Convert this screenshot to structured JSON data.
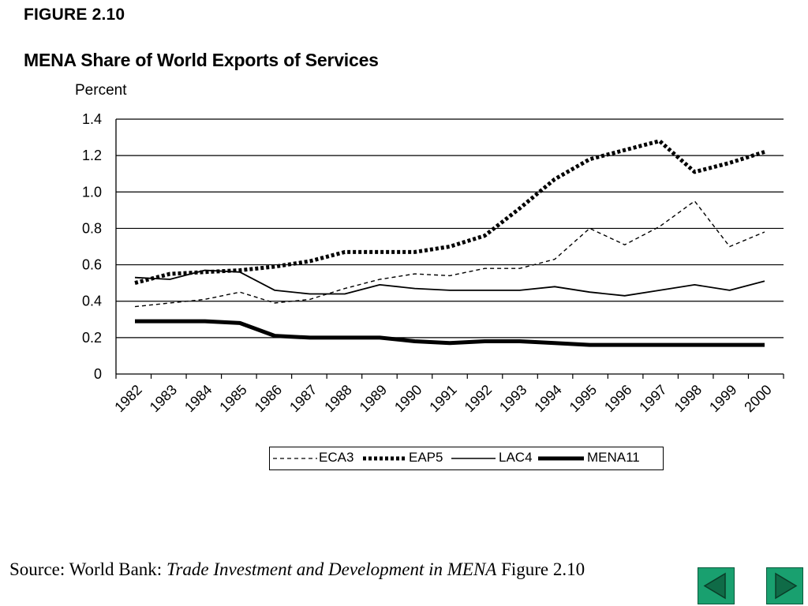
{
  "figure_label": "FIGURE 2.10",
  "chart_data": {
    "type": "line",
    "title": "MENA Share of World Exports of Services",
    "ylabel": "Percent",
    "xlabel": "",
    "ylim": [
      0,
      1.4
    ],
    "yticks": [
      "0",
      "0.2",
      "0.4",
      "0.6",
      "0.8",
      "1.0",
      "1.2",
      "1.4"
    ],
    "ytick_values": [
      0,
      0.2,
      0.4,
      0.6,
      0.8,
      1.0,
      1.2,
      1.4
    ],
    "categories": [
      "1982",
      "1983",
      "1984",
      "1985",
      "1986",
      "1987",
      "1988",
      "1989",
      "1990",
      "1991",
      "1992",
      "1993",
      "1994",
      "1995",
      "1996",
      "1997",
      "1998",
      "1999",
      "2000"
    ],
    "grid": "horizontal",
    "legend_position": "bottom",
    "series": [
      {
        "name": "ECA3",
        "style": "dashed",
        "values": [
          0.37,
          0.39,
          0.41,
          0.45,
          0.39,
          0.41,
          0.47,
          0.52,
          0.55,
          0.54,
          0.58,
          0.58,
          0.63,
          0.8,
          0.71,
          0.81,
          0.95,
          0.7,
          0.78
        ]
      },
      {
        "name": "EAP5",
        "style": "dotted",
        "values": [
          0.5,
          0.55,
          0.56,
          0.57,
          0.59,
          0.62,
          0.67,
          0.67,
          0.67,
          0.7,
          0.76,
          0.91,
          1.07,
          1.18,
          1.23,
          1.28,
          1.11,
          1.16,
          1.22
        ]
      },
      {
        "name": "LAC4",
        "style": "solid",
        "values": [
          0.53,
          0.52,
          0.57,
          0.56,
          0.46,
          0.44,
          0.44,
          0.49,
          0.47,
          0.46,
          0.46,
          0.46,
          0.48,
          0.45,
          0.43,
          0.46,
          0.49,
          0.46,
          0.51
        ]
      },
      {
        "name": "MENA11",
        "style": "thick",
        "values": [
          0.29,
          0.29,
          0.29,
          0.28,
          0.21,
          0.2,
          0.2,
          0.2,
          0.18,
          0.17,
          0.18,
          0.18,
          0.17,
          0.16,
          0.16,
          0.16,
          0.16,
          0.16,
          0.16
        ]
      }
    ]
  },
  "source": {
    "prefix": "Source: World Bank: ",
    "italic": "Trade Investment and Development in MENA",
    "suffix": " Figure 2.10"
  },
  "nav": {
    "prev_icon": "triangle-left-icon",
    "next_icon": "triangle-right-icon"
  }
}
